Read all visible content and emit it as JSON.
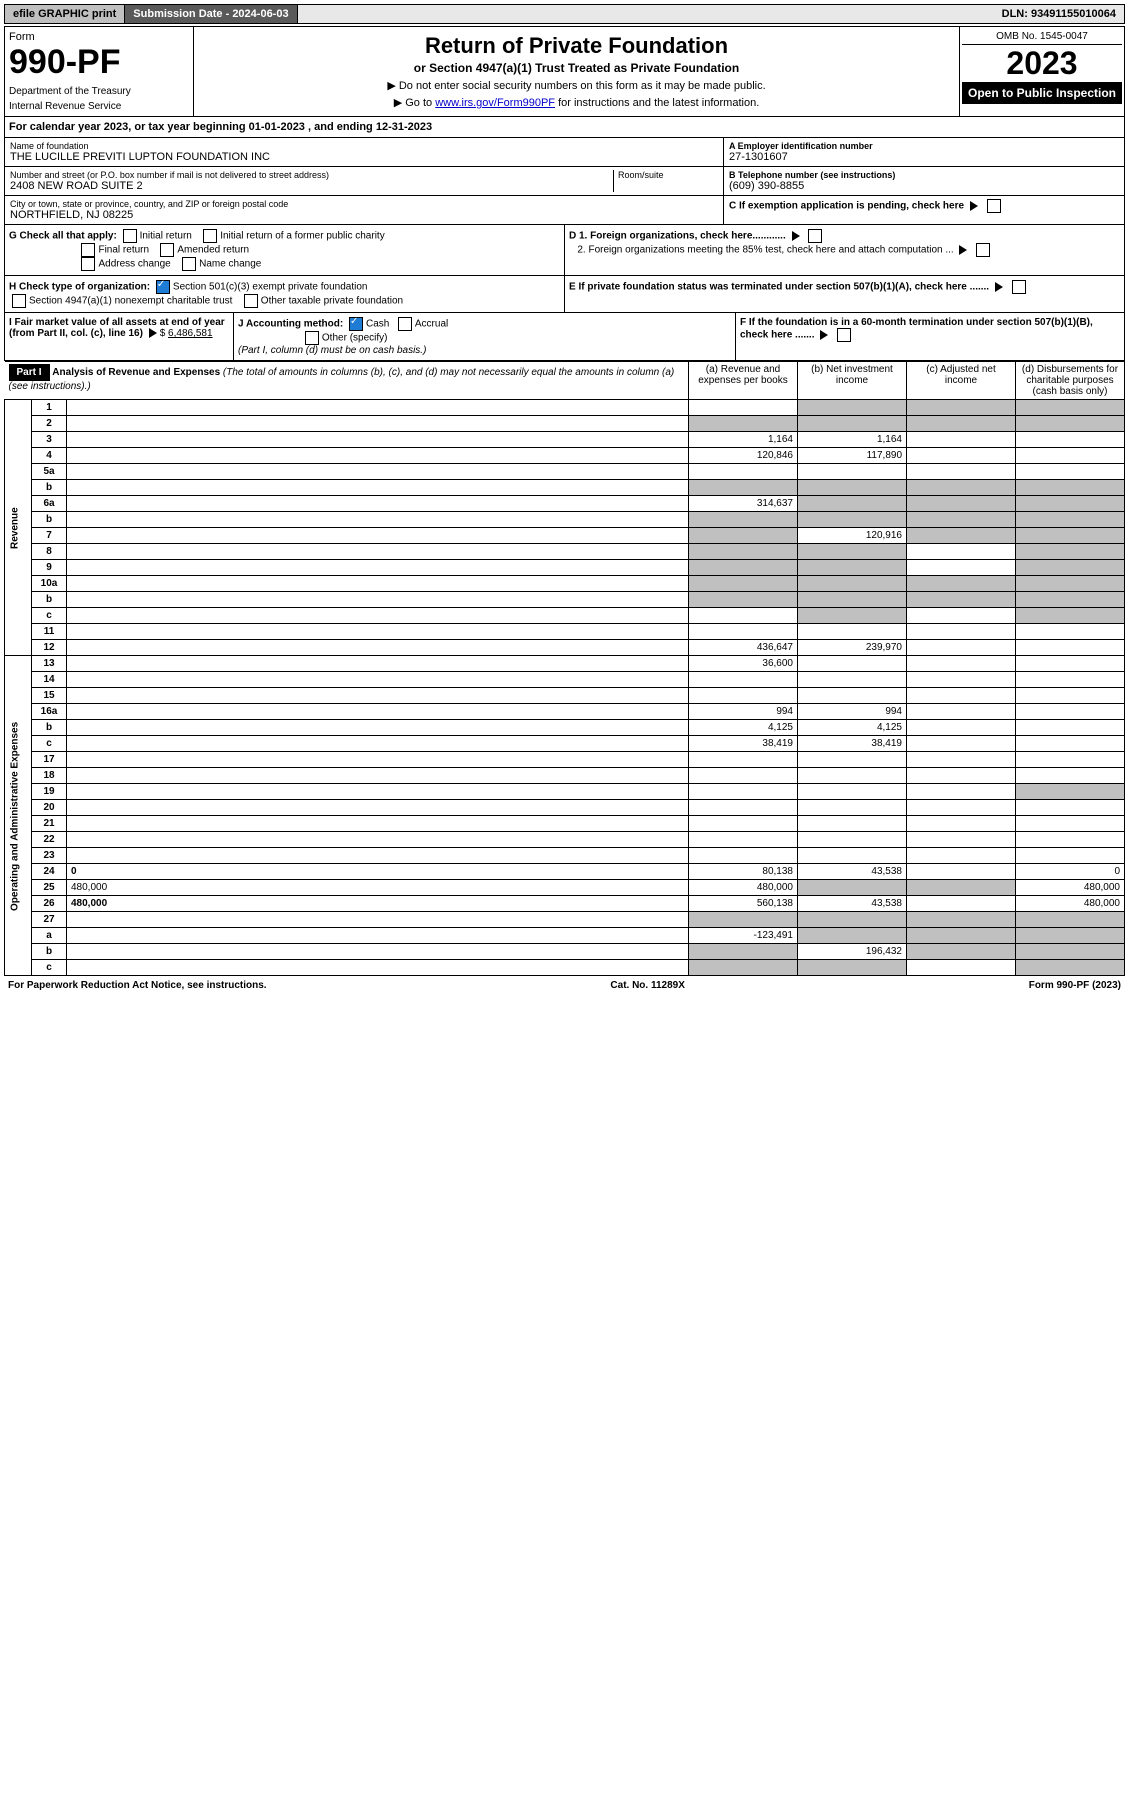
{
  "topbar": {
    "print": "efile GRAPHIC print",
    "sub_label": "Submission Date - 2024-06-03",
    "dln": "DLN: 93491155010064"
  },
  "header": {
    "form_label": "Form",
    "form_no": "990-PF",
    "dept": "Department of the Treasury",
    "irs": "Internal Revenue Service",
    "title": "Return of Private Foundation",
    "sub1": "or Section 4947(a)(1) Trust Treated as Private Foundation",
    "sub2": "▶ Do not enter social security numbers on this form as it may be made public.",
    "sub3_pre": "▶ Go to ",
    "sub3_link": "www.irs.gov/Form990PF",
    "sub3_post": " for instructions and the latest information.",
    "omb": "OMB No. 1545-0047",
    "year": "2023",
    "open": "Open to Public Inspection"
  },
  "cal": {
    "pre": "For calendar year 2023, or tax year beginning ",
    "begin": "01-01-2023",
    "mid": " , and ending ",
    "end": "12-31-2023"
  },
  "name": {
    "lbl": "Name of foundation",
    "val": "THE LUCILLE PREVITI LUPTON FOUNDATION INC"
  },
  "addr": {
    "lbl": "Number and street (or P.O. box number if mail is not delivered to street address)",
    "val": "2408 NEW ROAD SUITE 2",
    "room": "Room/suite"
  },
  "city": {
    "lbl": "City or town, state or province, country, and ZIP or foreign postal code",
    "val": "NORTHFIELD, NJ  08225"
  },
  "ein": {
    "lbl": "A Employer identification number",
    "val": "27-1301607"
  },
  "phone": {
    "lbl": "B Telephone number (see instructions)",
    "val": "(609) 390-8855"
  },
  "c": "C If exemption application is pending, check here",
  "g": {
    "lbl": "G Check all that apply:",
    "o1": "Initial return",
    "o2": "Final return",
    "o3": "Address change",
    "o4": "Initial return of a former public charity",
    "o5": "Amended return",
    "o6": "Name change"
  },
  "d": {
    "d1": "D 1. Foreign organizations, check here............",
    "d2": "2. Foreign organizations meeting the 85% test, check here and attach computation ..."
  },
  "h": {
    "lbl": "H Check type of organization:",
    "o1": "Section 501(c)(3) exempt private foundation",
    "o2": "Section 4947(a)(1) nonexempt charitable trust",
    "o3": "Other taxable private foundation"
  },
  "e": "E If private foundation status was terminated under section 507(b)(1)(A), check here .......",
  "i": {
    "lbl": "I Fair market value of all assets at end of year (from Part II, col. (c), line 16)",
    "val": "6,486,581"
  },
  "j": {
    "lbl": "J Accounting method:",
    "o1": "Cash",
    "o2": "Accrual",
    "o3": "Other (specify)",
    "note": "(Part I, column (d) must be on cash basis.)"
  },
  "f": "F If the foundation is in a 60-month termination under section 507(b)(1)(B), check here .......",
  "part1": {
    "label": "Part I",
    "title": "Analysis of Revenue and Expenses",
    "note": "(The total of amounts in columns (b), (c), and (d) may not necessarily equal the amounts in column (a) (see instructions).)",
    "cols": {
      "a": "(a) Revenue and expenses per books",
      "b": "(b) Net investment income",
      "c": "(c) Adjusted net income",
      "d": "(d) Disbursements for charitable purposes (cash basis only)"
    }
  },
  "side": {
    "rev": "Revenue",
    "exp": "Operating and Administrative Expenses"
  },
  "rows": [
    {
      "n": "1",
      "d": "",
      "a": "",
      "b": "",
      "c": "",
      "sa": false,
      "sb": true,
      "sc": true,
      "sd": true
    },
    {
      "n": "2",
      "d": "",
      "a": "",
      "b": "",
      "c": "",
      "sa": true,
      "sb": true,
      "sc": true,
      "sd": true
    },
    {
      "n": "3",
      "d": "",
      "a": "1,164",
      "b": "1,164",
      "c": ""
    },
    {
      "n": "4",
      "d": "",
      "a": "120,846",
      "b": "117,890",
      "c": ""
    },
    {
      "n": "5a",
      "d": "",
      "a": "",
      "b": "",
      "c": ""
    },
    {
      "n": "b",
      "d": "",
      "a": "",
      "b": "",
      "c": "",
      "sa": true,
      "sb": true,
      "sc": true,
      "sd": true
    },
    {
      "n": "6a",
      "d": "",
      "a": "314,637",
      "b": "",
      "c": "",
      "sb": true,
      "sc": true,
      "sd": true
    },
    {
      "n": "b",
      "d": "",
      "a": "",
      "b": "",
      "c": "",
      "sa": true,
      "sb": true,
      "sc": true,
      "sd": true
    },
    {
      "n": "7",
      "d": "",
      "a": "",
      "b": "120,916",
      "c": "",
      "sa": true,
      "sc": true,
      "sd": true
    },
    {
      "n": "8",
      "d": "",
      "a": "",
      "b": "",
      "c": "",
      "sa": true,
      "sb": true,
      "sd": true
    },
    {
      "n": "9",
      "d": "",
      "a": "",
      "b": "",
      "c": "",
      "sa": true,
      "sb": true,
      "sd": true
    },
    {
      "n": "10a",
      "d": "",
      "a": "",
      "b": "",
      "c": "",
      "sa": true,
      "sb": true,
      "sc": true,
      "sd": true
    },
    {
      "n": "b",
      "d": "",
      "a": "",
      "b": "",
      "c": "",
      "sa": true,
      "sb": true,
      "sc": true,
      "sd": true
    },
    {
      "n": "c",
      "d": "",
      "a": "",
      "b": "",
      "c": "",
      "sb": true,
      "sd": true
    },
    {
      "n": "11",
      "d": "",
      "a": "",
      "b": "",
      "c": ""
    },
    {
      "n": "12",
      "d": "",
      "a": "436,647",
      "b": "239,970",
      "c": "",
      "bold": true
    },
    {
      "n": "13",
      "d": "",
      "a": "36,600",
      "b": "",
      "c": ""
    },
    {
      "n": "14",
      "d": "",
      "a": "",
      "b": "",
      "c": ""
    },
    {
      "n": "15",
      "d": "",
      "a": "",
      "b": "",
      "c": ""
    },
    {
      "n": "16a",
      "d": "",
      "a": "994",
      "b": "994",
      "c": ""
    },
    {
      "n": "b",
      "d": "",
      "a": "4,125",
      "b": "4,125",
      "c": ""
    },
    {
      "n": "c",
      "d": "",
      "a": "38,419",
      "b": "38,419",
      "c": ""
    },
    {
      "n": "17",
      "d": "",
      "a": "",
      "b": "",
      "c": ""
    },
    {
      "n": "18",
      "d": "",
      "a": "",
      "b": "",
      "c": ""
    },
    {
      "n": "19",
      "d": "",
      "a": "",
      "b": "",
      "c": "",
      "sd": true
    },
    {
      "n": "20",
      "d": "",
      "a": "",
      "b": "",
      "c": ""
    },
    {
      "n": "21",
      "d": "",
      "a": "",
      "b": "",
      "c": ""
    },
    {
      "n": "22",
      "d": "",
      "a": "",
      "b": "",
      "c": ""
    },
    {
      "n": "23",
      "d": "",
      "a": "",
      "b": "",
      "c": ""
    },
    {
      "n": "24",
      "d": "0",
      "a": "80,138",
      "b": "43,538",
      "c": "",
      "bold": true
    },
    {
      "n": "25",
      "d": "480,000",
      "a": "480,000",
      "b": "",
      "c": "",
      "sb": true,
      "sc": true
    },
    {
      "n": "26",
      "d": "480,000",
      "a": "560,138",
      "b": "43,538",
      "c": "",
      "bold": true
    },
    {
      "n": "27",
      "d": "",
      "a": "",
      "b": "",
      "c": "",
      "sa": true,
      "sb": true,
      "sc": true,
      "sd": true
    },
    {
      "n": "a",
      "d": "",
      "a": "-123,491",
      "b": "",
      "c": "",
      "bold": true,
      "sb": true,
      "sc": true,
      "sd": true
    },
    {
      "n": "b",
      "d": "",
      "a": "",
      "b": "196,432",
      "c": "",
      "bold": true,
      "sa": true,
      "sc": true,
      "sd": true
    },
    {
      "n": "c",
      "d": "",
      "a": "",
      "b": "",
      "c": "",
      "bold": true,
      "sa": true,
      "sb": true,
      "sd": true
    }
  ],
  "footer": {
    "l": "For Paperwork Reduction Act Notice, see instructions.",
    "c": "Cat. No. 11289X",
    "r": "Form 990-PF (2023)"
  }
}
